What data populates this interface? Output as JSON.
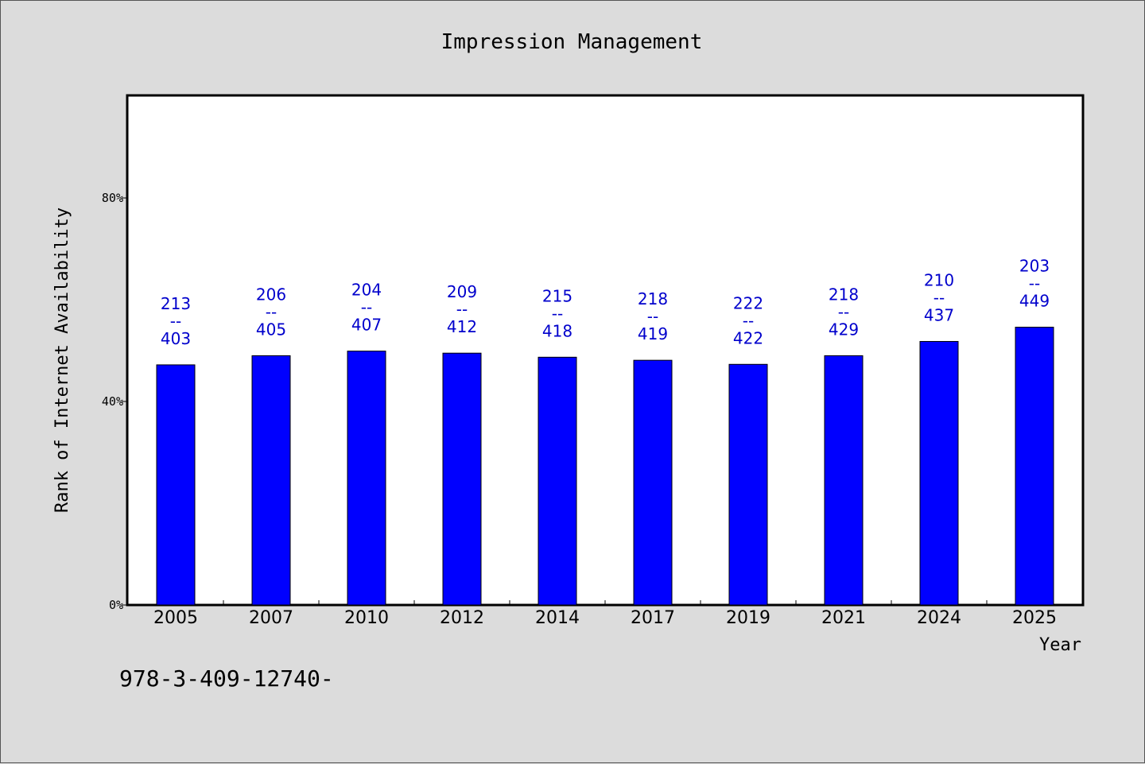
{
  "chart_data": {
    "type": "bar",
    "title": "Impression Management",
    "xlabel": "Year",
    "ylabel": "Rank of Internet Availability",
    "categories": [
      "2005",
      "2007",
      "2010",
      "2012",
      "2014",
      "2017",
      "2019",
      "2021",
      "2024",
      "2025"
    ],
    "values": [
      0.472,
      0.49,
      0.499,
      0.495,
      0.487,
      0.481,
      0.473,
      0.49,
      0.518,
      0.546
    ],
    "data_labels": [
      {
        "top": "213",
        "mid": "--",
        "bottom": "403"
      },
      {
        "top": "206",
        "mid": "--",
        "bottom": "405"
      },
      {
        "top": "204",
        "mid": "--",
        "bottom": "407"
      },
      {
        "top": "209",
        "mid": "--",
        "bottom": "412"
      },
      {
        "top": "215",
        "mid": "--",
        "bottom": "418"
      },
      {
        "top": "218",
        "mid": "--",
        "bottom": "419"
      },
      {
        "top": "222",
        "mid": "--",
        "bottom": "422"
      },
      {
        "top": "218",
        "mid": "--",
        "bottom": "429"
      },
      {
        "top": "210",
        "mid": "--",
        "bottom": "437"
      },
      {
        "top": "203",
        "mid": "--",
        "bottom": "449"
      }
    ],
    "yticks": [
      0,
      0.4,
      0.8
    ],
    "ytick_labels": [
      "0%",
      "40%",
      "80%"
    ],
    "ylim": [
      0,
      1.0
    ],
    "grid": false,
    "bar_color": "#0000ff",
    "label_color": "#0000cc",
    "background": "#dcdcdc",
    "plot_background": "#ffffff"
  },
  "footnote": "978-3-409-12740-"
}
